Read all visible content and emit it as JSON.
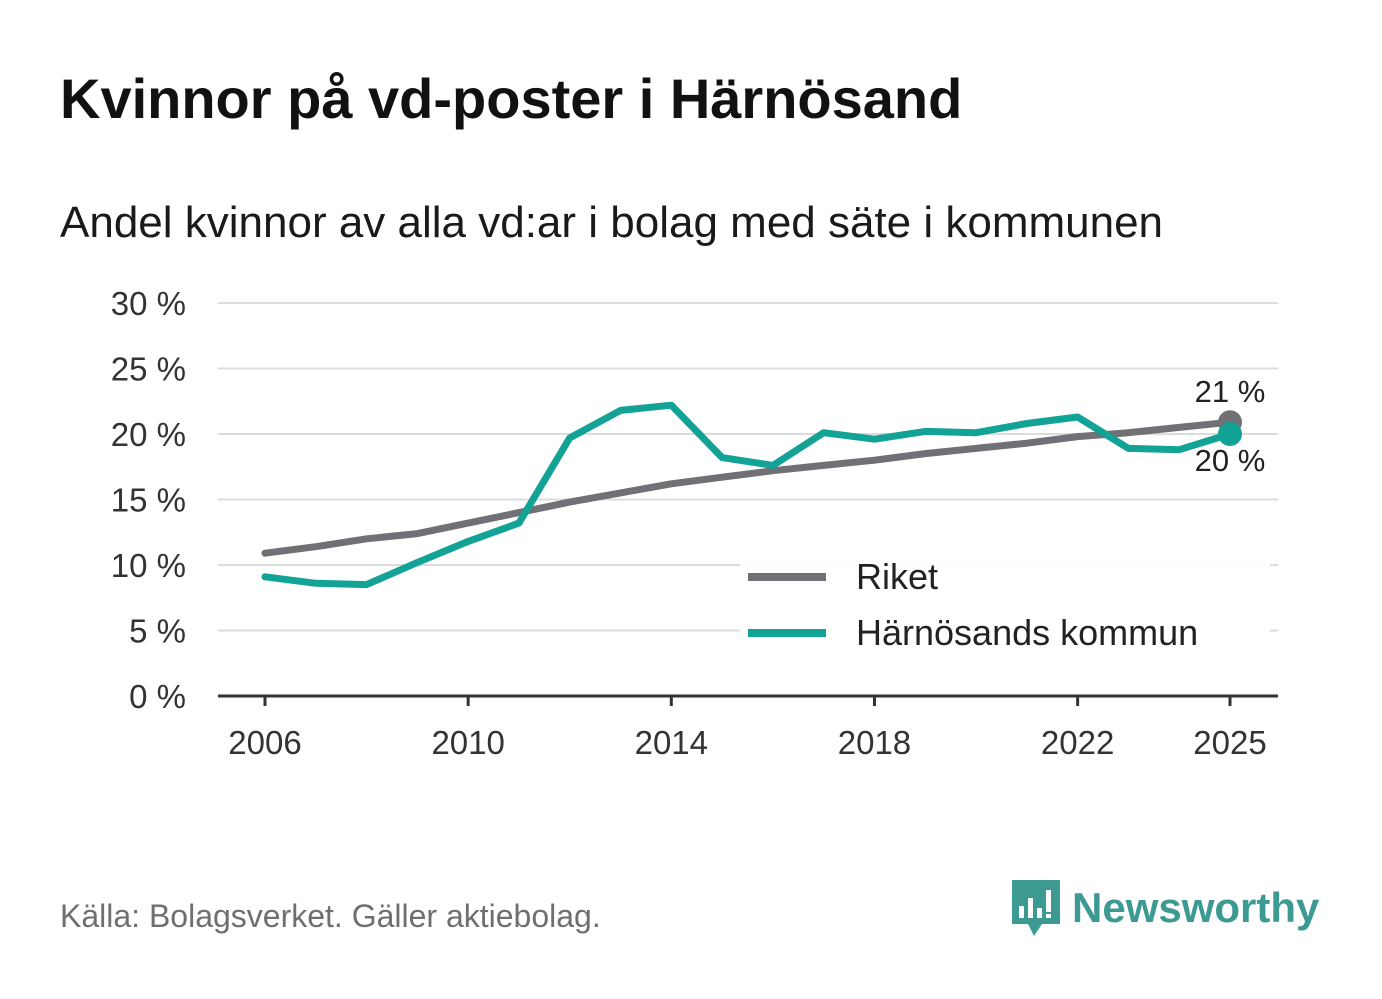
{
  "title": "Kvinnor på vd-poster i Härnösand",
  "subtitle": "Andel kvinnor av alla vd:ar i bolag med säte i kommunen",
  "source": "Källa: Bolagsverket. Gäller aktiebolag.",
  "logo_text": "Newsworthy",
  "colors": {
    "riket": "#707075",
    "harnosand": "#12a296",
    "grid": "#dcdcdc",
    "axis": "#333333"
  },
  "chart_data": {
    "type": "line",
    "title": "Kvinnor på vd-poster i Härnösand",
    "subtitle": "Andel kvinnor av alla vd:ar i bolag med säte i kommunen",
    "xlabel": "",
    "ylabel": "",
    "ylim": [
      0,
      30
    ],
    "y_ticks": [
      0,
      5,
      10,
      15,
      20,
      25,
      30
    ],
    "y_tick_labels": [
      "0 %",
      "5 %",
      "10 %",
      "15 %",
      "20 %",
      "25 %",
      "30 %"
    ],
    "x_ticks": [
      2006,
      2010,
      2014,
      2018,
      2022,
      2025
    ],
    "x_tick_labels": [
      "2006",
      "2010",
      "2014",
      "2018",
      "2022",
      "2025"
    ],
    "x": [
      2006,
      2007,
      2008,
      2009,
      2010,
      2011,
      2012,
      2013,
      2014,
      2015,
      2016,
      2017,
      2018,
      2019,
      2020,
      2021,
      2022,
      2023,
      2024,
      2025
    ],
    "series": [
      {
        "name": "Riket",
        "color": "#707075",
        "values": [
          10.9,
          11.4,
          12.0,
          12.4,
          13.2,
          14.0,
          14.8,
          15.5,
          16.2,
          16.7,
          17.2,
          17.6,
          18.0,
          18.5,
          18.9,
          19.3,
          19.8,
          20.1,
          20.5,
          20.9
        ]
      },
      {
        "name": "Härnösands kommun",
        "color": "#12a296",
        "values": [
          9.1,
          8.6,
          8.5,
          10.2,
          11.8,
          13.2,
          19.7,
          21.8,
          22.2,
          18.2,
          17.6,
          20.1,
          19.6,
          20.2,
          20.1,
          20.8,
          21.3,
          18.9,
          18.8,
          20.0
        ]
      }
    ],
    "end_labels": [
      {
        "series": "Riket",
        "text": "21 %"
      },
      {
        "series": "Härnösands kommun",
        "text": "20 %"
      }
    ],
    "legend": {
      "position": "bottom-right",
      "entries": [
        "Riket",
        "Härnösands kommun"
      ]
    },
    "grid": true
  }
}
